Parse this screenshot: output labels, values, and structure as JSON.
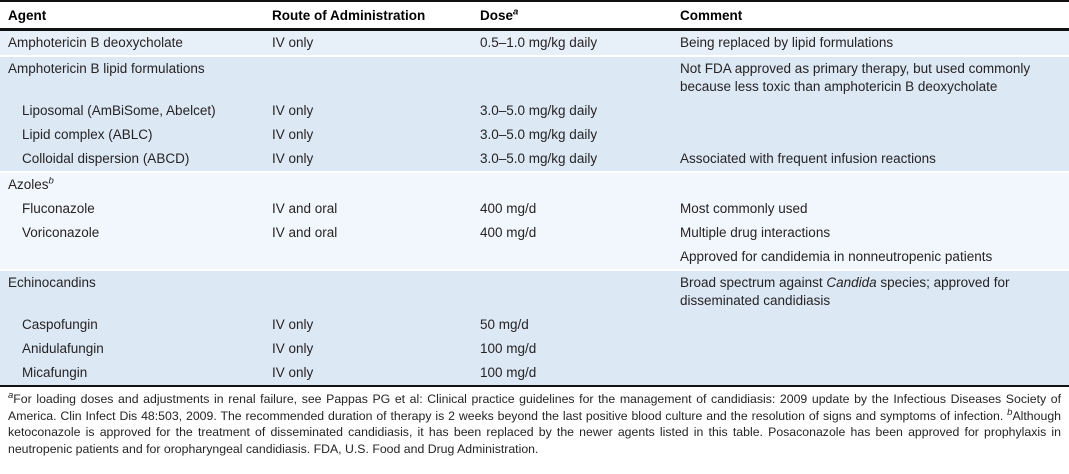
{
  "colors": {
    "band_light": "#e7eff8",
    "band_medium": "#dce8f4",
    "band_pale": "#f1f7fc",
    "rule": "#111111",
    "text": "#262324"
  },
  "header": {
    "agent": "Agent",
    "route": "Route of Administration",
    "dose": "Dose",
    "dose_sup": "a",
    "comment": "Comment"
  },
  "rows": [
    {
      "agent": "Amphotericin B deoxycholate",
      "route": "IV only",
      "dose": "0.5–1.0 mg/kg daily",
      "comment": "Being replaced by lipid formulations"
    },
    {
      "agent": "Amphotericin B lipid formulations",
      "route": "",
      "dose": "",
      "comment": "Not FDA approved as primary therapy, but used commonly because less toxic than amphotericin B deoxycholate"
    },
    {
      "agent": "Liposomal (AmBiSome, Abelcet)",
      "route": "IV only",
      "dose": "3.0–5.0 mg/kg daily",
      "comment": ""
    },
    {
      "agent": "Lipid complex (ABLC)",
      "route": "IV only",
      "dose": "3.0–5.0 mg/kg daily",
      "comment": ""
    },
    {
      "agent": "Colloidal dispersion (ABCD)",
      "route": "IV only",
      "dose": "3.0–5.0 mg/kg daily",
      "comment": "Associated with frequent infusion reactions"
    },
    {
      "agent": "Azoles",
      "agent_sup": "b",
      "route": "",
      "dose": "",
      "comment": ""
    },
    {
      "agent": "Fluconazole",
      "route": "IV and oral",
      "dose": "400 mg/d",
      "comment": "Most commonly used"
    },
    {
      "agent": "Voriconazole",
      "route": "IV and oral",
      "dose": "400 mg/d",
      "comment": "Multiple drug interactions"
    },
    {
      "agent": "",
      "route": "",
      "dose": "",
      "comment": "Approved for candidemia in nonneutropenic patients"
    },
    {
      "agent": "Echinocandins",
      "route": "",
      "dose": "",
      "comment_pre": "Broad spectrum against ",
      "comment_italic": "Candida",
      "comment_post": " species; approved for disseminated candidiasis"
    },
    {
      "agent": "Caspofungin",
      "route": "IV only",
      "dose": "50 mg/d",
      "comment": ""
    },
    {
      "agent": "Anidulafungin",
      "route": "IV only",
      "dose": "100 mg/d",
      "comment": ""
    },
    {
      "agent": "Micafungin",
      "route": "IV only",
      "dose": "100 mg/d",
      "comment": ""
    }
  ],
  "footnote": {
    "a_sup": "a",
    "a_text": "For loading doses and adjustments in renal failure, see Pappas PG et al: Clinical practice guidelines for the management of candidiasis: 2009 update by the Infectious Diseases Society of America. Clin Infect Dis 48:503, 2009. The recommended duration of therapy is 2 weeks beyond the last positive blood culture and the resolution of signs and symptoms of infection. ",
    "b_sup": "b",
    "b_text": "Although ketoconazole is approved for the treatment of disseminated candidiasis, it has been replaced by the newer agents listed in this table. Posaconazole has been approved for prophylaxis in neutropenic patients and for oropharyngeal candidiasis. FDA, U.S. Food and Drug Administration."
  }
}
